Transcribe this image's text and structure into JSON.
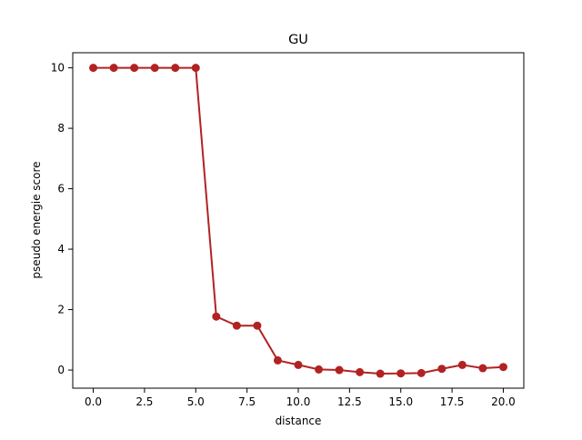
{
  "chart_data": {
    "type": "line",
    "title": "GU",
    "xlabel": "distance",
    "ylabel": "pseudo energie score",
    "x": [
      0,
      1,
      2,
      3,
      4,
      5,
      6,
      7,
      8,
      9,
      10,
      11,
      12,
      13,
      14,
      15,
      16,
      17,
      18,
      19,
      20
    ],
    "series": [
      {
        "values": [
          10,
          10,
          10,
          10,
          10,
          10,
          1.77,
          1.47,
          1.47,
          0.32,
          0.17,
          0.02,
          0.0,
          -0.07,
          -0.12,
          -0.11,
          -0.1,
          0.04,
          0.17,
          0.06,
          0.1
        ]
      }
    ],
    "xlim": [
      -1.0,
      21.0
    ],
    "ylim": [
      -0.6,
      10.5
    ],
    "xticks": [
      0.0,
      2.5,
      5.0,
      7.5,
      10.0,
      12.5,
      15.0,
      17.5,
      20.0
    ],
    "xtick_labels": [
      "0.0",
      "2.5",
      "5.0",
      "7.5",
      "10.0",
      "12.5",
      "15.0",
      "17.5",
      "20.0"
    ],
    "yticks": [
      0,
      2,
      4,
      6,
      8,
      10
    ],
    "ytick_labels": [
      "0",
      "2",
      "4",
      "6",
      "8",
      "10"
    ],
    "grid": false,
    "legend": "none",
    "colors": {
      "series": "#b22222",
      "axes": "#000000",
      "background": "#ffffff"
    }
  }
}
